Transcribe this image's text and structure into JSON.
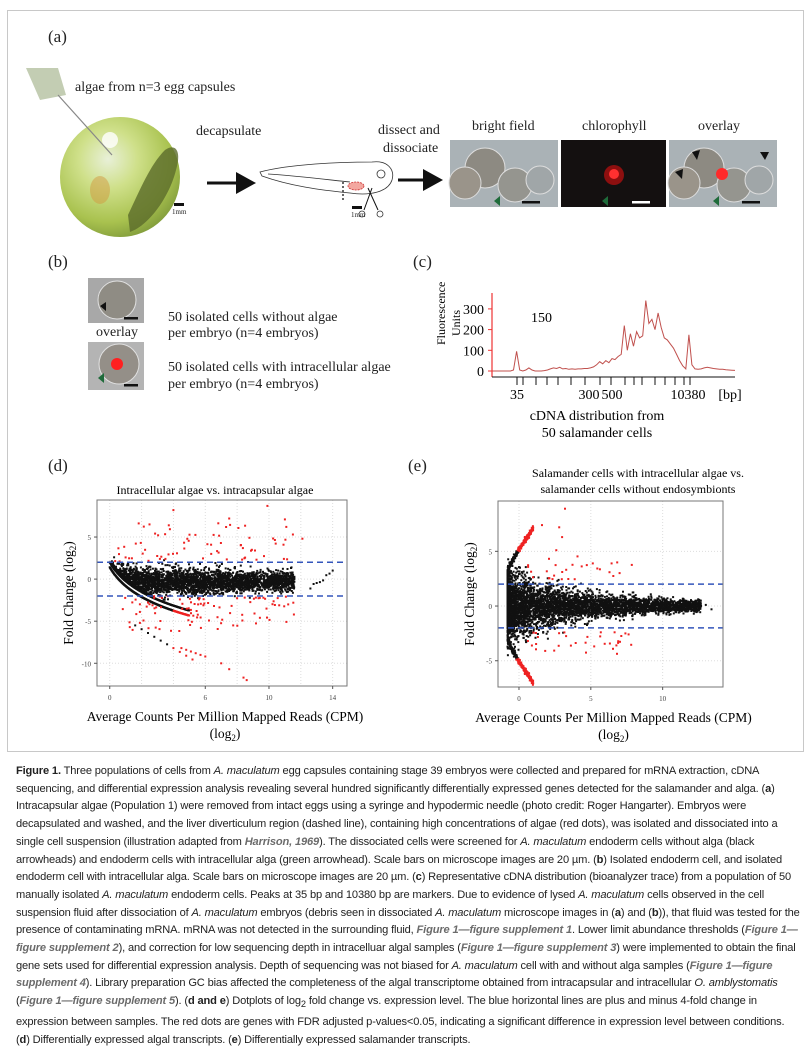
{
  "panel_a": {
    "label": "(a)",
    "syringe_text": "algae from n=3 egg capsules",
    "step1": "decapsulate",
    "step2_line1": "dissect and",
    "step2_line2": "dissociate",
    "scale1": "1mm",
    "scale2": "1mm",
    "img_labels": [
      "bright field",
      "chlorophyll",
      "overlay"
    ]
  },
  "panel_b": {
    "label": "(b)",
    "overlay_label": "overlay",
    "row1_line1": "50 isolated cells without algae",
    "row1_line2": "per embryo (n=4 embryos)",
    "row2_line1": "50 isolated cells with intracellular algae",
    "row2_line2": "per embryo (n=4 embryos)"
  },
  "panel_d_label": "(d)",
  "panel_e_label": "(e)",
  "chart_data": [
    {
      "id": "c",
      "label": "(c)",
      "type": "line",
      "ylabel_line1": "Fluorescence",
      "ylabel_line2": "Units",
      "annotation": "150",
      "yticks": [
        "0",
        "100",
        "200",
        "300"
      ],
      "ytick_values": [
        0,
        100,
        200,
        300
      ],
      "ylim": [
        0,
        370
      ],
      "xtick_labels": [
        "35",
        "300",
        "500",
        "10380"
      ],
      "xunit": "[bp]",
      "xlabel_line1": "cDNA distribution from",
      "xlabel_line2": "50 salamander cells",
      "color": "#c0504d",
      "trace_fu": [
        0,
        0,
        0,
        0,
        0,
        0,
        0,
        5,
        95,
        5,
        0,
        5,
        15,
        5,
        0,
        0,
        0,
        2,
        5,
        10,
        15,
        12,
        18,
        10,
        12,
        8,
        10,
        8,
        10,
        10,
        12,
        12,
        15,
        20,
        30,
        45,
        35,
        50,
        40,
        60,
        55,
        70,
        80,
        220,
        100,
        180,
        120,
        190,
        160,
        170,
        340,
        230,
        250,
        200,
        280,
        210,
        160,
        150,
        130,
        110,
        80,
        50,
        25,
        10,
        175,
        30,
        10,
        8,
        10,
        15,
        18,
        15,
        12,
        10,
        8,
        8,
        6,
        5,
        4,
        3
      ]
    },
    {
      "id": "d",
      "type": "scatter",
      "title": "Intracellular algae vs. intracapsular algae",
      "xlabel": "Average Counts Per Million Mapped Reads (CPM)",
      "xlabel2": "(log",
      "xlabel2_sub": "2",
      "xlabel2_end": ")",
      "ylabel": "Fold Change (log",
      "ylabel_sub": "2",
      "ylabel_end": ")",
      "xticks": [
        "0",
        "6",
        "10",
        "14"
      ],
      "xtick_values": [
        0,
        6,
        10,
        14
      ],
      "xgrid": [
        0,
        2,
        4,
        6,
        8,
        10,
        12,
        14
      ],
      "yticks": [
        "5",
        "0",
        "-5",
        "-10"
      ],
      "ytick_values": [
        5,
        0,
        -5,
        -10
      ],
      "xlim": [
        -0.8,
        14.9
      ],
      "ylim": [
        -12.7,
        9.4
      ],
      "threshold_lines": [
        2,
        -2
      ],
      "colors": {
        "ns": "#111111",
        "sig": "#ee2222",
        "threshold": "#3355bb"
      }
    },
    {
      "id": "e",
      "type": "scatter",
      "title_line1": "Salamander cells with intracellular algae vs.",
      "title_line2": "salamander cells without endosymbionts",
      "xlabel": "Average Counts Per Million Mapped Reads (CPM)",
      "xlabel2": "(log",
      "xlabel2_sub": "2",
      "xlabel2_end": ")",
      "ylabel": "Fold Change (log",
      "ylabel_sub": "2",
      "ylabel_end": ")",
      "xticks": [
        "0",
        "5",
        "10"
      ],
      "xtick_values": [
        0,
        5,
        10
      ],
      "yticks": [
        "5",
        "0",
        "-5"
      ],
      "ytick_values": [
        5,
        0,
        -5
      ],
      "xlim": [
        -1.46,
        14.2
      ],
      "ylim": [
        -7.4,
        9.6
      ],
      "threshold_lines": [
        2,
        -2
      ],
      "colors": {
        "ns": "#111111",
        "sig": "#ee2222",
        "threshold": "#3355bb"
      }
    }
  ],
  "caption": [
    {
      "s": "b",
      "t": "Figure 1."
    },
    {
      "s": "",
      "t": " Three populations of cells from "
    },
    {
      "s": "i",
      "t": "A. maculatum"
    },
    {
      "s": "",
      "t": " egg capsules containing stage 39 embryos were collected and prepared for mRNA extraction, cDNA sequencing, and differential expression analysis revealing several hundred significantly differentially expressed genes detected for the salamander and alga. ("
    },
    {
      "s": "b",
      "t": "a"
    },
    {
      "s": "",
      "t": ") Intracapsular algae (Population 1) were removed from intact eggs using a syringe and hypodermic needle (photo credit: Roger Hangarter). Embryos were decapsulated and washed, and the liver diverticulum region (dashed line), containing high concentrations of algae (red dots), was isolated and dissociated into a single cell suspension (illustration adapted from "
    },
    {
      "s": "l",
      "t": "Harrison, 1969"
    },
    {
      "s": "",
      "t": "). The dissociated cells were screened for "
    },
    {
      "s": "i",
      "t": "A. maculatum"
    },
    {
      "s": "",
      "t": " endoderm cells without alga (black arrowheads) and endoderm cells with intracellular alga (green arrowhead). Scale bars on microscope images are 20 µm. ("
    },
    {
      "s": "b",
      "t": "b"
    },
    {
      "s": "",
      "t": ") Isolated endoderm cell, and isolated endoderm cell with intracellular alga. Scale bars on microscope images are 20 µm. ("
    },
    {
      "s": "b",
      "t": "c"
    },
    {
      "s": "",
      "t": ") Representative cDNA distribution (bioanalyzer trace) from a population of 50 manually isolated "
    },
    {
      "s": "i",
      "t": "A. maculatum"
    },
    {
      "s": "",
      "t": " endoderm cells. Peaks at 35 bp and 10380 bp are markers. Due to evidence of lysed "
    },
    {
      "s": "i",
      "t": "A. maculatum"
    },
    {
      "s": "",
      "t": " cells observed in the cell suspension fluid after dissociation of "
    },
    {
      "s": "i",
      "t": "A. maculatum"
    },
    {
      "s": "",
      "t": " embryos (debris seen in dissociated "
    },
    {
      "s": "i",
      "t": "A. maculatum"
    },
    {
      "s": "",
      "t": " microscope images in ("
    },
    {
      "s": "b",
      "t": "a"
    },
    {
      "s": "",
      "t": ") and ("
    },
    {
      "s": "b",
      "t": "b"
    },
    {
      "s": "",
      "t": ")), that fluid was tested for the presence of contaminating mRNA. mRNA was not detected in the surrounding fluid, "
    },
    {
      "s": "l",
      "t": "Figure 1—figure supplement 1"
    },
    {
      "s": "",
      "t": ". Lower limit abundance thresholds ("
    },
    {
      "s": "l",
      "t": "Figure 1—figure supplement 2"
    },
    {
      "s": "",
      "t": "), and correction for low sequencing depth in intracelluar algal samples ("
    },
    {
      "s": "l",
      "t": "Figure 1—figure supplement 3"
    },
    {
      "s": "",
      "t": ") were implemented to obtain the final gene sets used for differential expression analysis. Depth of sequencing was not biased for "
    },
    {
      "s": "i",
      "t": "A. maculatum"
    },
    {
      "s": "",
      "t": " cell with and without alga samples ("
    },
    {
      "s": "l",
      "t": "Figure 1—figure supplement 4"
    },
    {
      "s": "",
      "t": "). Library preparation GC bias affected the completeness of the algal transcriptome obtained from intracapsular and intracellular "
    },
    {
      "s": "i",
      "t": "O. amblystomatis"
    },
    {
      "s": "",
      "t": " ("
    },
    {
      "s": "l",
      "t": "Figure 1—figure supplement 5"
    },
    {
      "s": "",
      "t": "). ("
    },
    {
      "s": "b",
      "t": "d and e"
    },
    {
      "s": "",
      "t": ") Dotplots of log"
    },
    {
      "s": "sub",
      "t": "2"
    },
    {
      "s": "",
      "t": " fold change vs. expression level. The blue horizontal lines are plus and minus 4-fold change in expression between samples. The red dots are genes with FDR adjusted p-values<0.05, indicating a significant difference in expression level between conditions. ("
    },
    {
      "s": "b",
      "t": "d"
    },
    {
      "s": "",
      "t": ") Differentially expressed algal transcripts. ("
    },
    {
      "s": "b",
      "t": "e"
    },
    {
      "s": "",
      "t": ") Differentially expressed salamander transcripts."
    }
  ]
}
